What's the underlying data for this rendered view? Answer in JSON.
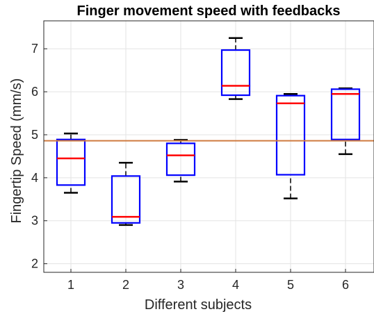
{
  "chart_data": {
    "type": "box",
    "title": "Finger movement speed with feedbacks",
    "xlabel": "Different subjects",
    "ylabel": "Fingertip Speed (mm/s)",
    "categories": [
      "1",
      "2",
      "3",
      "4",
      "5",
      "6"
    ],
    "ylim": [
      1.8,
      7.65
    ],
    "yticks": [
      2,
      3,
      4,
      5,
      6,
      7
    ],
    "grid": true,
    "reference_line": {
      "value": 4.86,
      "color": "#cf7a3f"
    },
    "colors": {
      "box": "#0000ff",
      "median": "#ff0000",
      "whisker": "#000000"
    },
    "boxes": [
      {
        "category": "1",
        "min": 3.65,
        "q1": 3.83,
        "median": 4.45,
        "q3": 4.89,
        "max": 5.03
      },
      {
        "category": "2",
        "min": 2.9,
        "q1": 2.95,
        "median": 3.09,
        "q3": 4.04,
        "max": 4.35
      },
      {
        "category": "3",
        "min": 3.91,
        "q1": 4.06,
        "median": 4.52,
        "q3": 4.8,
        "max": 4.88
      },
      {
        "category": "4",
        "min": 5.83,
        "q1": 5.92,
        "median": 6.14,
        "q3": 6.97,
        "max": 7.25
      },
      {
        "category": "5",
        "min": 3.52,
        "q1": 4.07,
        "median": 5.73,
        "q3": 5.91,
        "max": 5.95
      },
      {
        "category": "6",
        "min": 4.55,
        "q1": 4.89,
        "median": 5.95,
        "q3": 6.06,
        "max": 6.08
      }
    ]
  }
}
